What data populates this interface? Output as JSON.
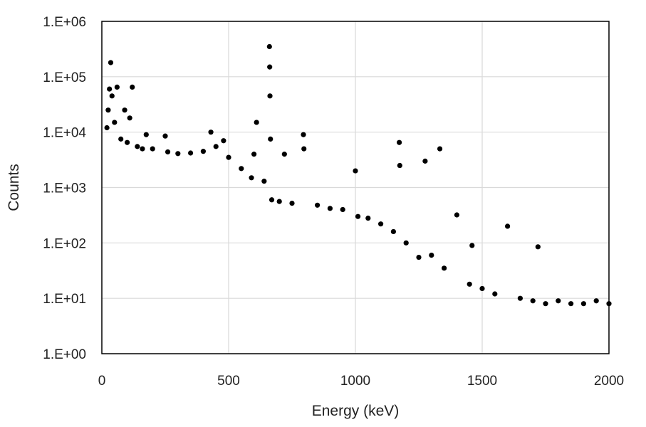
{
  "chart_data": {
    "type": "scatter",
    "title": "",
    "xlabel": "Energy (keV)",
    "ylabel": "Counts",
    "xlim": [
      0,
      2000
    ],
    "ylim": [
      1,
      1000000
    ],
    "yscale": "log",
    "grid": true,
    "legend": "none",
    "marker_color": "#000000",
    "grid_color": "#d9d9d9",
    "x_ticks": [
      0,
      500,
      1000,
      1500,
      2000
    ],
    "x_tick_labels": [
      "0",
      "500",
      "1000",
      "1500",
      "2000"
    ],
    "y_ticks": [
      1,
      10,
      100,
      1000,
      10000,
      100000,
      1000000
    ],
    "y_tick_labels": [
      "1.E+00",
      "1.E+01",
      "1.E+02",
      "1.E+03",
      "1.E+04",
      "1.E+05",
      "1.E+06"
    ],
    "series": [
      {
        "values": [
          {
            "x": 20,
            "y": 12000
          },
          {
            "x": 25,
            "y": 25000
          },
          {
            "x": 30,
            "y": 60000
          },
          {
            "x": 35,
            "y": 180000
          },
          {
            "x": 40,
            "y": 45000
          },
          {
            "x": 50,
            "y": 15000
          },
          {
            "x": 60,
            "y": 65000
          },
          {
            "x": 75,
            "y": 7500
          },
          {
            "x": 90,
            "y": 25000
          },
          {
            "x": 100,
            "y": 6500
          },
          {
            "x": 110,
            "y": 18000
          },
          {
            "x": 120,
            "y": 65000
          },
          {
            "x": 140,
            "y": 5500
          },
          {
            "x": 160,
            "y": 5000
          },
          {
            "x": 175,
            "y": 9000
          },
          {
            "x": 200,
            "y": 5000
          },
          {
            "x": 250,
            "y": 8500
          },
          {
            "x": 260,
            "y": 4400
          },
          {
            "x": 300,
            "y": 4100
          },
          {
            "x": 350,
            "y": 4200
          },
          {
            "x": 400,
            "y": 4500
          },
          {
            "x": 430,
            "y": 10000
          },
          {
            "x": 450,
            "y": 5500
          },
          {
            "x": 480,
            "y": 7000
          },
          {
            "x": 500,
            "y": 3500
          },
          {
            "x": 550,
            "y": 2200
          },
          {
            "x": 590,
            "y": 1500
          },
          {
            "x": 600,
            "y": 4000
          },
          {
            "x": 610,
            "y": 15000
          },
          {
            "x": 640,
            "y": 1300
          },
          {
            "x": 661,
            "y": 350000
          },
          {
            "x": 662,
            "y": 150000
          },
          {
            "x": 663,
            "y": 45000
          },
          {
            "x": 665,
            "y": 7500
          },
          {
            "x": 670,
            "y": 600
          },
          {
            "x": 700,
            "y": 560
          },
          {
            "x": 720,
            "y": 4000
          },
          {
            "x": 750,
            "y": 520
          },
          {
            "x": 795,
            "y": 9000
          },
          {
            "x": 797,
            "y": 5000
          },
          {
            "x": 850,
            "y": 480
          },
          {
            "x": 900,
            "y": 420
          },
          {
            "x": 950,
            "y": 400
          },
          {
            "x": 1000,
            "y": 2000
          },
          {
            "x": 1010,
            "y": 300
          },
          {
            "x": 1050,
            "y": 280
          },
          {
            "x": 1100,
            "y": 220
          },
          {
            "x": 1150,
            "y": 160
          },
          {
            "x": 1173,
            "y": 6500
          },
          {
            "x": 1175,
            "y": 2500
          },
          {
            "x": 1200,
            "y": 100
          },
          {
            "x": 1250,
            "y": 55
          },
          {
            "x": 1275,
            "y": 3000
          },
          {
            "x": 1300,
            "y": 60
          },
          {
            "x": 1333,
            "y": 5000
          },
          {
            "x": 1350,
            "y": 35
          },
          {
            "x": 1400,
            "y": 320
          },
          {
            "x": 1450,
            "y": 18
          },
          {
            "x": 1460,
            "y": 90
          },
          {
            "x": 1500,
            "y": 15
          },
          {
            "x": 1550,
            "y": 12
          },
          {
            "x": 1600,
            "y": 200
          },
          {
            "x": 1650,
            "y": 10
          },
          {
            "x": 1700,
            "y": 9
          },
          {
            "x": 1720,
            "y": 85
          },
          {
            "x": 1750,
            "y": 8
          },
          {
            "x": 1800,
            "y": 9
          },
          {
            "x": 1850,
            "y": 8
          },
          {
            "x": 1900,
            "y": 8
          },
          {
            "x": 1950,
            "y": 9
          },
          {
            "x": 2000,
            "y": 8
          }
        ]
      }
    ]
  }
}
